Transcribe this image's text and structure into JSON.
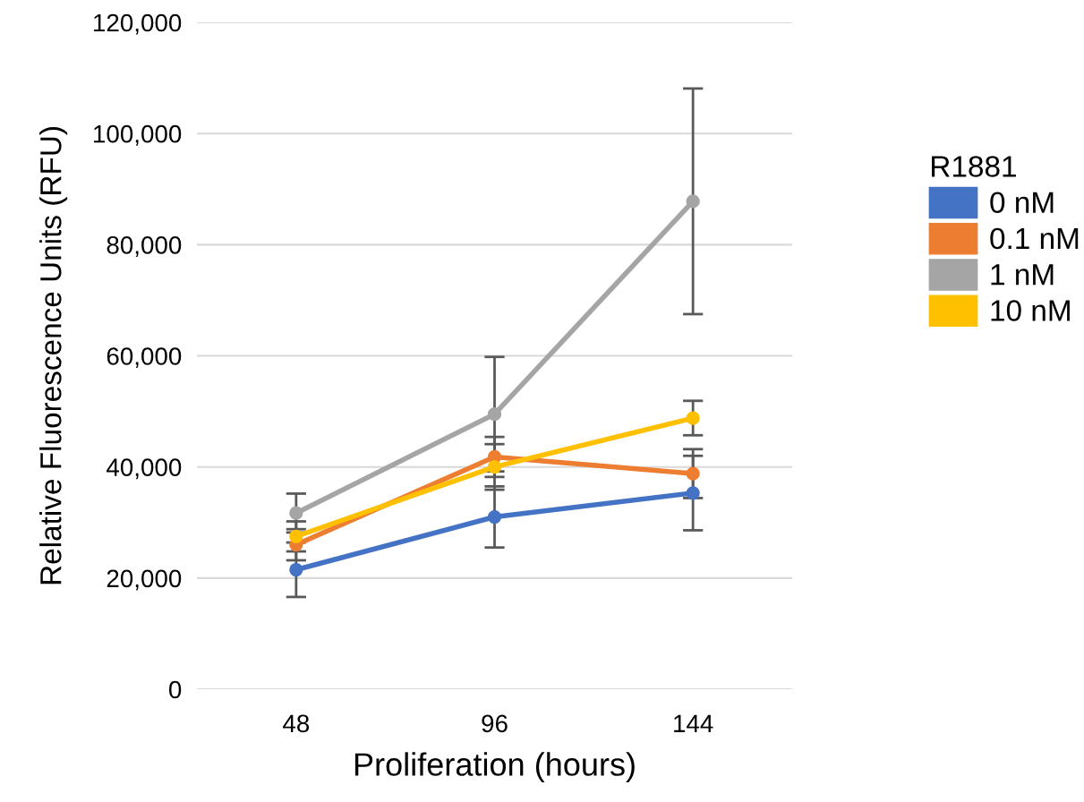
{
  "chart_data": {
    "type": "line",
    "xlabel": "Proliferation (hours)",
    "ylabel": "Relative Fluorescence Units (RFU)",
    "legend_title": "R1881",
    "categories": [
      "48",
      "96",
      "144"
    ],
    "series": [
      {
        "name": "0 nM",
        "color": "#4472c4",
        "values": [
          21500,
          31000,
          35300
        ],
        "errors": [
          4900,
          5500,
          6700
        ]
      },
      {
        "name": "0.1 nM",
        "color": "#ed7d31",
        "values": [
          26000,
          41800,
          38800
        ],
        "errors": [
          2800,
          3600,
          4400
        ]
      },
      {
        "name": "1 nM",
        "color": "#a5a5a5",
        "values": [
          31700,
          49500,
          87800
        ],
        "errors": [
          3500,
          10300,
          20300
        ]
      },
      {
        "name": "10 nM",
        "color": "#ffc000",
        "values": [
          27500,
          40000,
          48800
        ],
        "errors": [
          2700,
          4100,
          3100
        ]
      }
    ],
    "ylim": [
      0,
      120000
    ],
    "yticks": [
      {
        "value": 0,
        "label": "0"
      },
      {
        "value": 20000,
        "label": "20,000"
      },
      {
        "value": 40000,
        "label": "40,000"
      },
      {
        "value": 60000,
        "label": "60,000"
      },
      {
        "value": 80000,
        "label": "80,000"
      },
      {
        "value": 100000,
        "label": "100,000"
      },
      {
        "value": 120000,
        "label": "120,000"
      }
    ],
    "grid": "y",
    "legend": "right",
    "marker": "circle",
    "line_style": "solid"
  }
}
